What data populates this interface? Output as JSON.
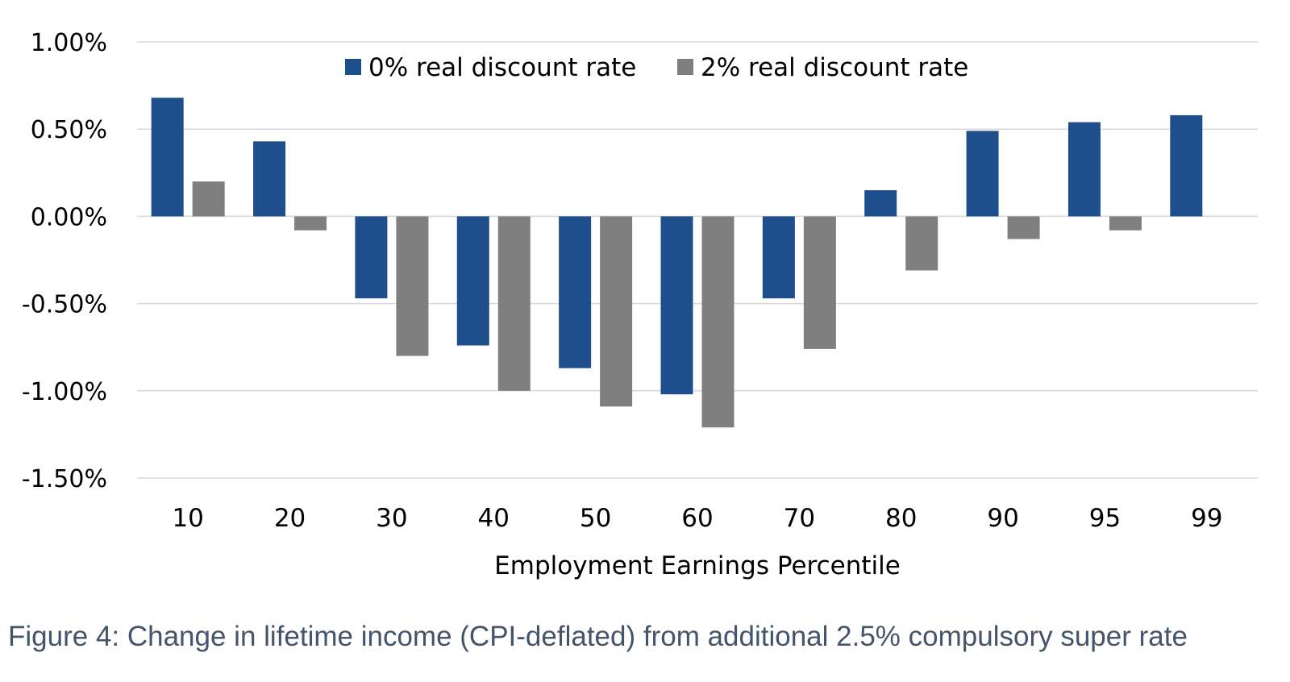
{
  "chart_data": {
    "type": "bar",
    "categories": [
      "10",
      "20",
      "30",
      "40",
      "50",
      "60",
      "70",
      "80",
      "90",
      "95",
      "99"
    ],
    "series": [
      {
        "name": "0% real discount rate",
        "color": "#1f4e8c",
        "values": [
          0.68,
          0.43,
          -0.47,
          -0.74,
          -0.87,
          -1.02,
          -0.47,
          0.15,
          0.49,
          0.54,
          0.58
        ]
      },
      {
        "name": "2% real discount rate",
        "color": "#7f7f7f",
        "values": [
          0.2,
          -0.08,
          -0.8,
          -1.0,
          -1.09,
          -1.21,
          -0.76,
          -0.31,
          -0.13,
          -0.08,
          0.0
        ]
      }
    ],
    "ylim": [
      -1.5,
      1.0
    ],
    "yticks": [
      1.0,
      0.5,
      0.0,
      -0.5,
      -1.0,
      -1.5
    ],
    "ytick_labels": [
      "1.00%",
      "0.50%",
      "0.00%",
      "-0.50%",
      "-1.00%",
      "-1.50%"
    ],
    "xlabel": "Employment Earnings Percentile",
    "ylabel": "",
    "grid": true,
    "legend_position": "top-center"
  },
  "caption": "Figure 4: Change in lifetime income (CPI-deflated) from additional 2.5% compulsory super rate"
}
